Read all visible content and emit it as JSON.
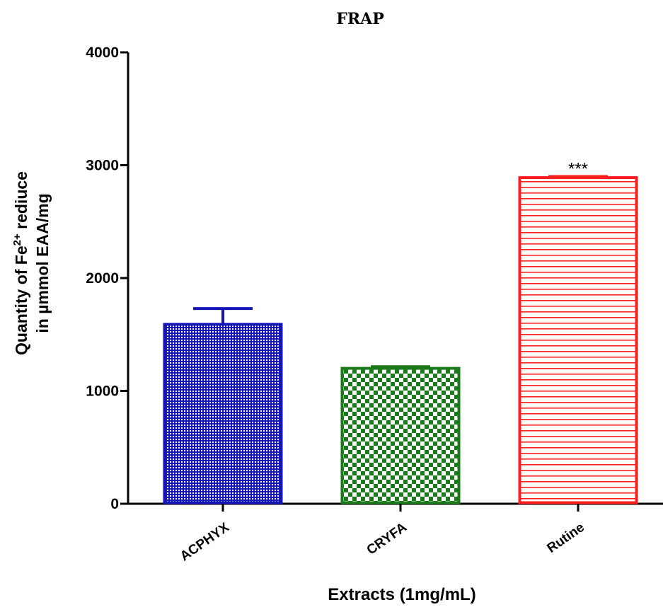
{
  "chart_data": {
    "type": "bar",
    "title": "FRAP",
    "xlabel": "Extracts (1mg/mL)",
    "ylabel_line1_prefix": "Quantity of Fe",
    "ylabel_line1_sup": "2+",
    "ylabel_line1_suffix": " rediuce",
    "ylabel_line2": "in µmmol EAA/mg",
    "categories": [
      "ACPHYX",
      "CRYFA",
      "Rutine"
    ],
    "values": [
      1590,
      1200,
      2890
    ],
    "errors": [
      140,
      15,
      10
    ],
    "annotations": [
      "",
      "",
      "***"
    ],
    "ylim": [
      0,
      4000
    ],
    "yticks": [
      "0",
      "1000",
      "2000",
      "3000",
      "4000"
    ],
    "ytick_values": [
      0,
      1000,
      2000,
      3000,
      4000
    ],
    "colors": [
      "#1515b5",
      "#1a7a1a",
      "#ff1e1e"
    ],
    "patterns": [
      "fine-crosshatch",
      "checkerboard",
      "horizontal-lines"
    ],
    "grid": false,
    "legend": "none"
  }
}
